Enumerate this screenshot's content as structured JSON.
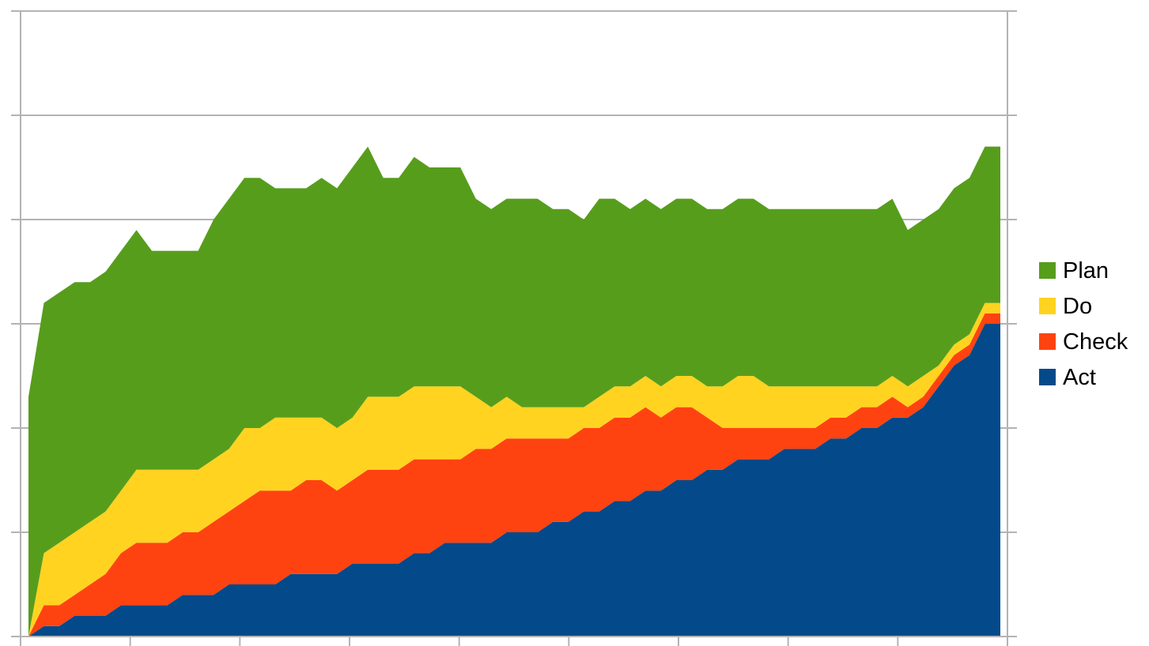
{
  "chart_data": {
    "type": "area",
    "stacked": true,
    "grid": true,
    "legend_position": "right",
    "title": "",
    "xlabel": "",
    "ylabel": "",
    "x": [
      0,
      1,
      2,
      3,
      4,
      5,
      6,
      7,
      8,
      9,
      10,
      11,
      12,
      13,
      14,
      15,
      16,
      17,
      18,
      19,
      20,
      21,
      22,
      23,
      24,
      25,
      26,
      27,
      28,
      29,
      30,
      31,
      32,
      33,
      34,
      35,
      36,
      37,
      38,
      39,
      40,
      41,
      42,
      43,
      44,
      45,
      46,
      47,
      48,
      49,
      50,
      51,
      52,
      53,
      54,
      55,
      56,
      57,
      58,
      59,
      60,
      61,
      62,
      63
    ],
    "xlim": [
      -0.5,
      63.5
    ],
    "ylim": [
      0,
      60
    ],
    "y_gridlines": [
      0,
      10,
      20,
      30,
      40,
      50,
      60
    ],
    "series": [
      {
        "name": "Act",
        "color": "#044a8a",
        "values": [
          0,
          1,
          1,
          2,
          2,
          2,
          3,
          3,
          3,
          3,
          4,
          4,
          4,
          5,
          5,
          5,
          5,
          6,
          6,
          6,
          6,
          7,
          7,
          7,
          7,
          8,
          8,
          9,
          9,
          9,
          9,
          10,
          10,
          10,
          11,
          11,
          12,
          12,
          13,
          13,
          14,
          14,
          15,
          15,
          16,
          16,
          17,
          17,
          17,
          18,
          18,
          18,
          19,
          19,
          20,
          20,
          21,
          21,
          22,
          24,
          26,
          27,
          30,
          30
        ]
      },
      {
        "name": "Check",
        "color": "#ff4310",
        "values": [
          0,
          2,
          2,
          2,
          3,
          4,
          5,
          6,
          6,
          6,
          6,
          6,
          7,
          7,
          8,
          9,
          9,
          8,
          9,
          9,
          8,
          8,
          9,
          9,
          9,
          9,
          9,
          8,
          8,
          9,
          9,
          9,
          9,
          9,
          8,
          8,
          8,
          8,
          8,
          8,
          8,
          7,
          7,
          7,
          5,
          4,
          3,
          3,
          3,
          2,
          2,
          2,
          2,
          2,
          2,
          2,
          2,
          1,
          1,
          1,
          1,
          1,
          1,
          1
        ]
      },
      {
        "name": "Do",
        "color": "#ffd320",
        "values": [
          0,
          5,
          6,
          6,
          6,
          6,
          6,
          7,
          7,
          7,
          6,
          6,
          6,
          6,
          7,
          6,
          7,
          7,
          6,
          6,
          6,
          6,
          7,
          7,
          7,
          7,
          7,
          7,
          7,
          5,
          4,
          4,
          3,
          3,
          3,
          3,
          2,
          3,
          3,
          3,
          3,
          3,
          3,
          3,
          3,
          4,
          5,
          5,
          4,
          4,
          4,
          4,
          3,
          3,
          2,
          2,
          2,
          2,
          2,
          1,
          1,
          1,
          1,
          1
        ]
      },
      {
        "name": "Plan",
        "color": "#579d1c",
        "values": [
          23,
          24,
          24,
          24,
          23,
          23,
          23,
          23,
          21,
          21,
          21,
          21,
          23,
          24,
          24,
          24,
          22,
          22,
          22,
          23,
          23,
          24,
          24,
          21,
          21,
          22,
          21,
          21,
          21,
          19,
          19,
          19,
          20,
          20,
          19,
          19,
          18,
          19,
          18,
          17,
          17,
          17,
          17,
          17,
          17,
          17,
          17,
          17,
          17,
          17,
          17,
          17,
          17,
          17,
          17,
          17,
          17,
          15,
          15,
          15,
          15,
          15,
          15,
          15
        ]
      }
    ]
  }
}
